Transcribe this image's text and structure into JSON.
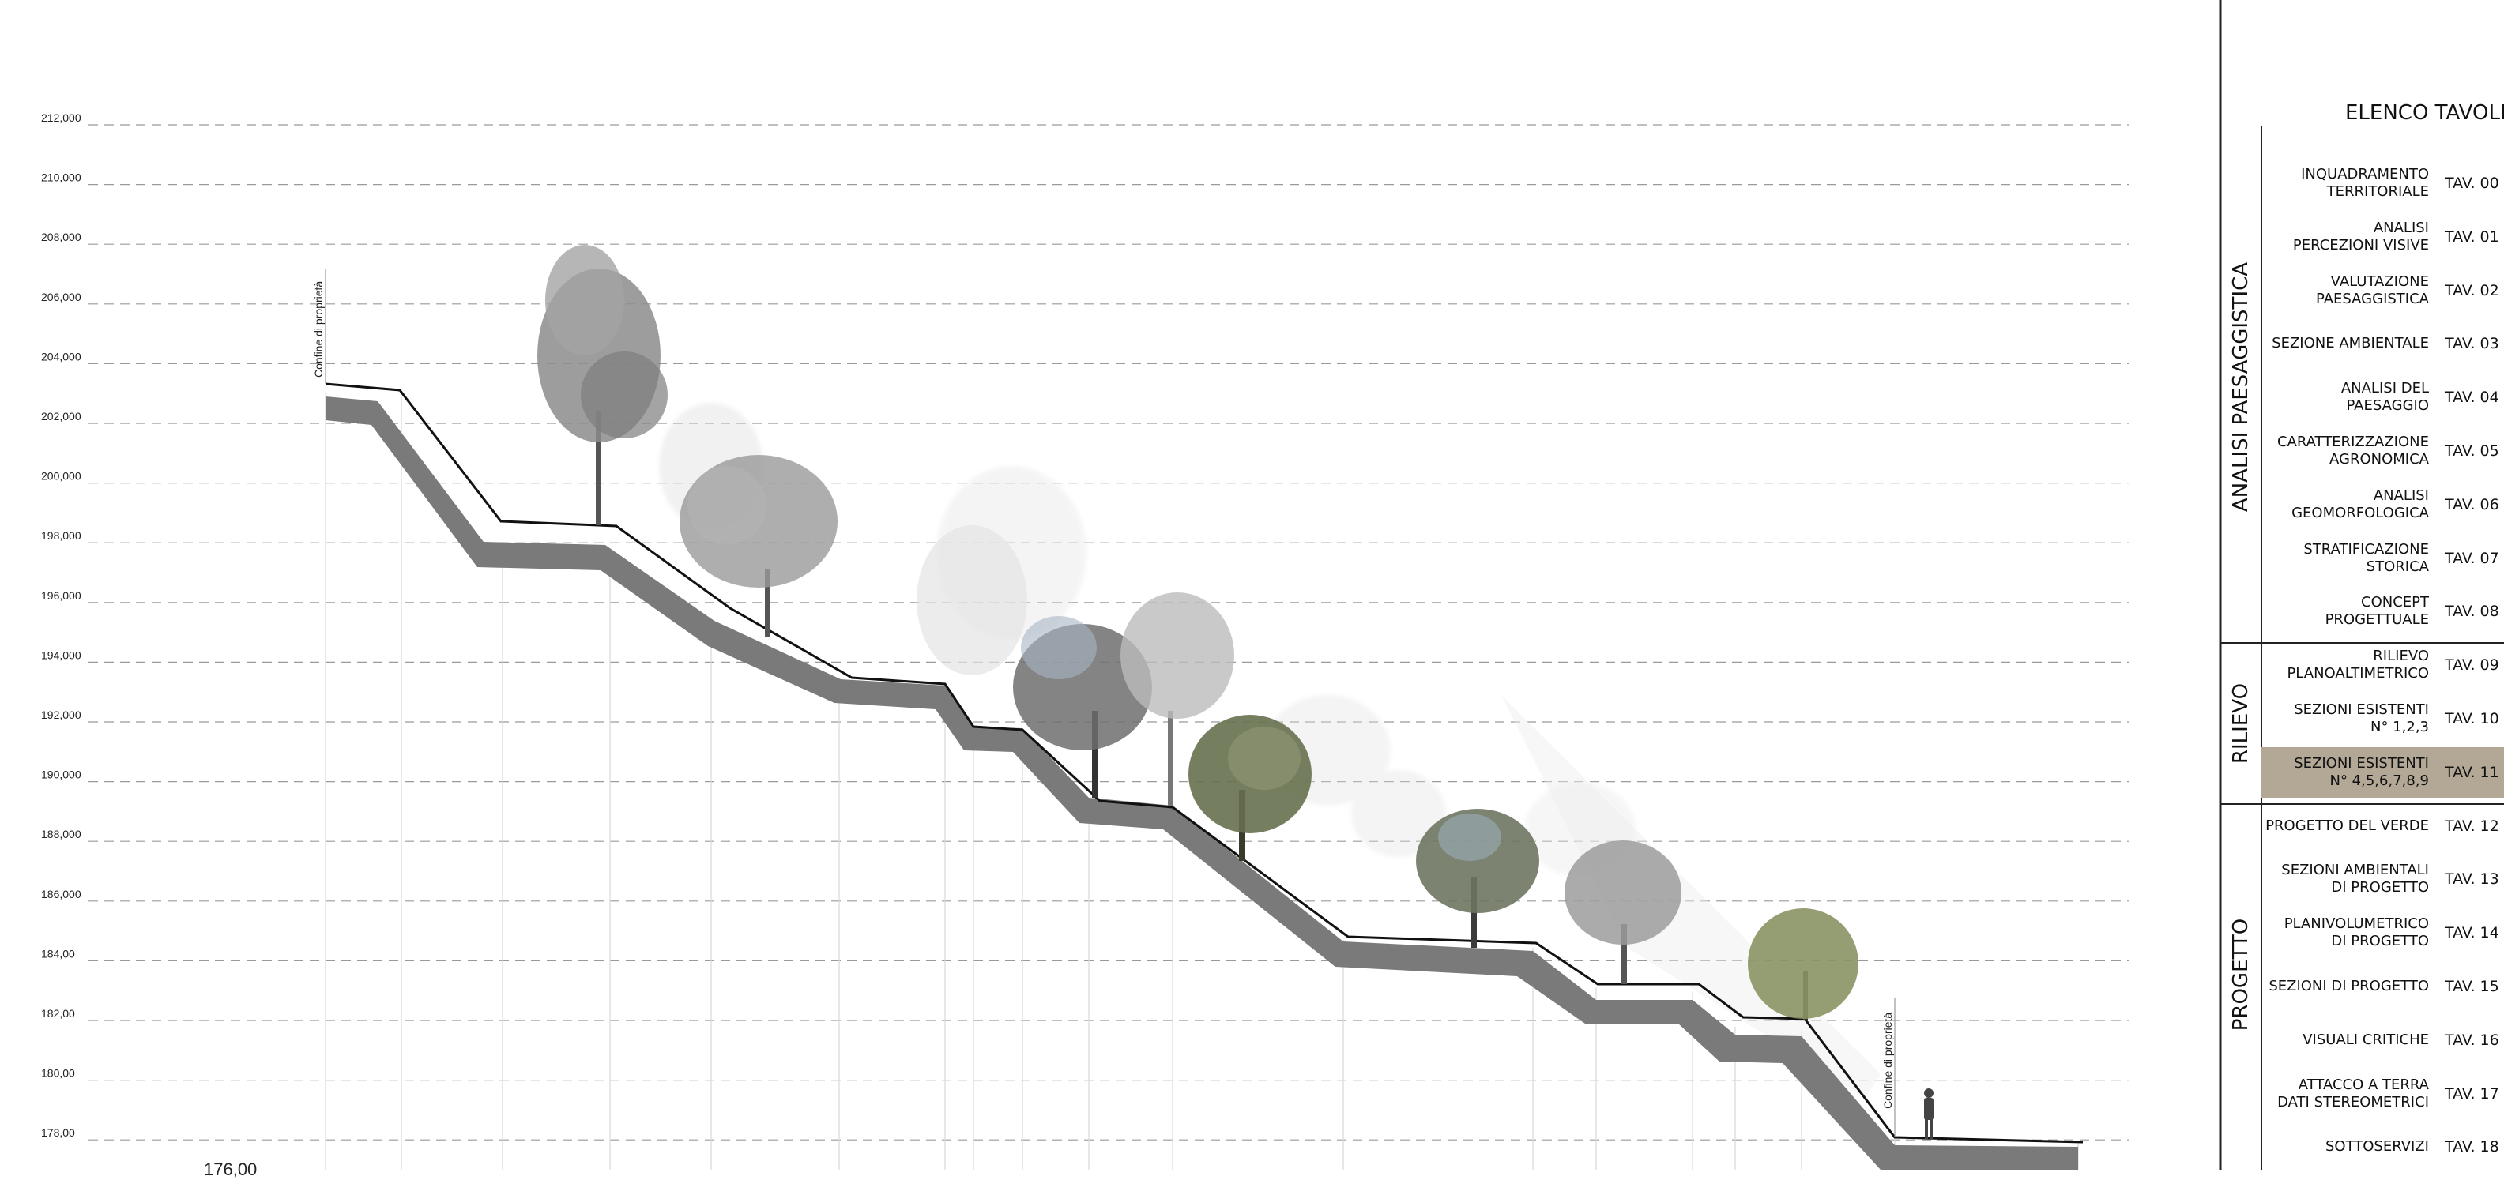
{
  "elevations": [
    "212,000",
    "210,000",
    "208,000",
    "206,000",
    "204,000",
    "202,000",
    "200,000",
    "198,000",
    "196,000",
    "194,000",
    "192,000",
    "190,000",
    "188,000",
    "186,000",
    "184,00",
    "182,00",
    "180,00",
    "178,00"
  ],
  "property_label": "Confine di proprietà",
  "stray_label": "176,00",
  "sidebar": {
    "title": "ELENCO TAVOLE",
    "groups": [
      {
        "label": "ANALISI  PAESAGGISTICA",
        "label_lines": [
          "ANALISI",
          "PAESAGGISTICA"
        ]
      },
      {
        "label": "RILIEVO"
      },
      {
        "label": "PROGETTO"
      }
    ],
    "items": [
      {
        "name": "INQUADRAMENTO\nTERRITORIALE",
        "code": "TAV. 00"
      },
      {
        "name": "ANALISI\nPERCEZIONI VISIVE",
        "code": "TAV. 01"
      },
      {
        "name": "VALUTAZIONE\nPAESAGGISTICA",
        "code": "TAV. 02"
      },
      {
        "name": "SEZIONE AMBIENTALE",
        "code": "TAV. 03"
      },
      {
        "name": "ANALISI DEL PAESAGGIO",
        "code": "TAV. 04"
      },
      {
        "name": "CARATTERIZZAZIONE\nAGRONOMICA",
        "code": "TAV. 05"
      },
      {
        "name": "ANALISI\nGEOMORFOLOGICA",
        "code": "TAV. 06"
      },
      {
        "name": "STRATIFICAZIONE\nSTORICA",
        "code": "TAV. 07"
      },
      {
        "name": "CONCEPT\nPROGETTUALE",
        "code": "TAV. 08"
      },
      {
        "name": "RILIEVO\nPLANOALTIMETRICO",
        "code": "TAV. 09"
      },
      {
        "name": "SEZIONI ESISTENTI\nN° 1,2,3",
        "code": "TAV. 10"
      },
      {
        "name": "SEZIONI ESISTENTI\nN° 4,5,6,7,8,9",
        "code": "TAV. 11",
        "active": true
      },
      {
        "name": "PROGETTO DEL VERDE",
        "code": "TAV. 12"
      },
      {
        "name": "SEZIONI AMBIENTALI\nDI PROGETTO",
        "code": "TAV. 13"
      },
      {
        "name": "PLANIVOLUMETRICO\nDI PROGETTO",
        "code": "TAV. 14"
      },
      {
        "name": "SEZIONI DI PROGETTO",
        "code": "TAV. 15"
      },
      {
        "name": "VISUALI CRITICHE",
        "code": "TAV. 16"
      },
      {
        "name": "ATTACCO A TERRA\nDATI STEREOMETRICI",
        "code": "TAV. 17"
      },
      {
        "name": "SOTTOSERVIZI",
        "code": "TAV. 18"
      }
    ],
    "colors": {
      "active_bg": "#b3a796",
      "rule": "#222222"
    }
  }
}
